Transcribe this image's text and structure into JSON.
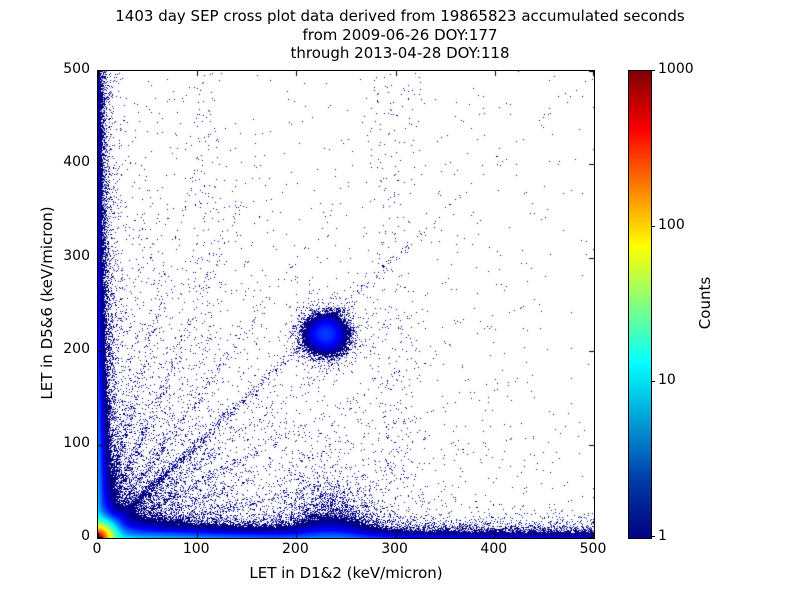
{
  "chart_data": {
    "type": "heatmap",
    "title_lines": [
      "1403 day SEP cross plot data derived from 19865823 accumulated seconds",
      "from 2009-06-26 DOY:177",
      "through 2013-04-28 DOY:118"
    ],
    "xlabel": "LET in D1&2 (keV/micron)",
    "ylabel": "LET in D5&6 (keV/micron)",
    "xlim": [
      0,
      500
    ],
    "ylim": [
      0,
      500
    ],
    "xticks": [
      0,
      100,
      200,
      300,
      400,
      500
    ],
    "yticks": [
      0,
      100,
      200,
      300,
      400,
      500
    ],
    "grid": false,
    "background": "#ffffff",
    "frame_color": "#000000",
    "colorbar": {
      "label": "Counts",
      "scale": "log",
      "range": [
        1,
        1000
      ],
      "tick_labels_top_to_bottom": [
        "1000",
        "100",
        "10",
        "1"
      ],
      "colormap": "jet",
      "min_count_color": "#000083",
      "max_count_color": "#800000",
      "gradient_stops_bottom_to_top": [
        {
          "color": "#000083",
          "pos": 0
        },
        {
          "color": "#003caa",
          "pos": 12.5
        },
        {
          "color": "#05ffff",
          "pos": 37.5
        },
        {
          "color": "#ffff00",
          "pos": 62.5
        },
        {
          "color": "#fa0000",
          "pos": 87.5
        },
        {
          "color": "#800000",
          "pos": 100
        }
      ]
    },
    "density_model": {
      "note": "approximate reconstruction of the 2D count density (counts per 1x1 keV/micron bin) shown by the cross plot: a very hot core at the origin (~1000 counts), dense bands hugging both axes, a fan of radial tracks from the origin, a diffuse low-count scatter that thins away from the origin, a small clump near (230,218), and faint vertical streams near x=108 and x=298",
      "components": [
        {
          "type": "radial_exp",
          "x0": 0,
          "y0": 0,
          "peak": 1000,
          "scale": 4.4
        },
        {
          "type": "band_bottom",
          "peak": 12,
          "y_scale": 6,
          "x_bg": 0.15,
          "x_decay": 130
        },
        {
          "type": "band_left",
          "peak": 10,
          "x_scale": 5,
          "y_bg": 0.12,
          "y_decay": 130
        },
        {
          "type": "fan",
          "peak": 0.5,
          "x_scale": 30,
          "y_scale": 80
        },
        {
          "type": "fan",
          "peak": 0.35,
          "x_scale": 90,
          "y_scale": 28
        },
        {
          "type": "diffuse",
          "peak": 0.25,
          "decay": 120,
          "floor": 0.002
        },
        {
          "type": "blob",
          "x0": 230,
          "y0": 218,
          "peak": 3.5,
          "sigma": 13
        },
        {
          "type": "bottom_bump",
          "x0": 235,
          "x_sigma": 35,
          "peak": 2.5,
          "y_scale": 18
        },
        {
          "type": "vstreak",
          "x0": 298,
          "sigma": 20,
          "peak": 0.03,
          "y_decay": 600
        },
        {
          "type": "vstreak",
          "x0": 108,
          "sigma": 12,
          "peak": 0.025,
          "y_decay": 700
        },
        {
          "type": "ray",
          "angle_deg": 45,
          "width": 3,
          "peak": 0.9,
          "r_decay": 150
        },
        {
          "type": "ray",
          "angle_deg": 14,
          "width": 2.5,
          "peak": 0.5,
          "r_decay": 110
        },
        {
          "type": "ray",
          "angle_deg": 22,
          "width": 2.5,
          "peak": 0.45,
          "r_decay": 100
        },
        {
          "type": "ray",
          "angle_deg": 30,
          "width": 2.5,
          "peak": 0.5,
          "r_decay": 110
        },
        {
          "type": "ray",
          "angle_deg": 38,
          "width": 2.5,
          "peak": 0.45,
          "r_decay": 100
        },
        {
          "type": "ray",
          "angle_deg": 56,
          "width": 2.5,
          "peak": 0.5,
          "r_decay": 110
        },
        {
          "type": "ray",
          "angle_deg": 68,
          "width": 2.5,
          "peak": 0.5,
          "r_decay": 120
        },
        {
          "type": "ray",
          "angle_deg": 76,
          "width": 2.5,
          "peak": 0.45,
          "r_decay": 120
        }
      ]
    }
  }
}
